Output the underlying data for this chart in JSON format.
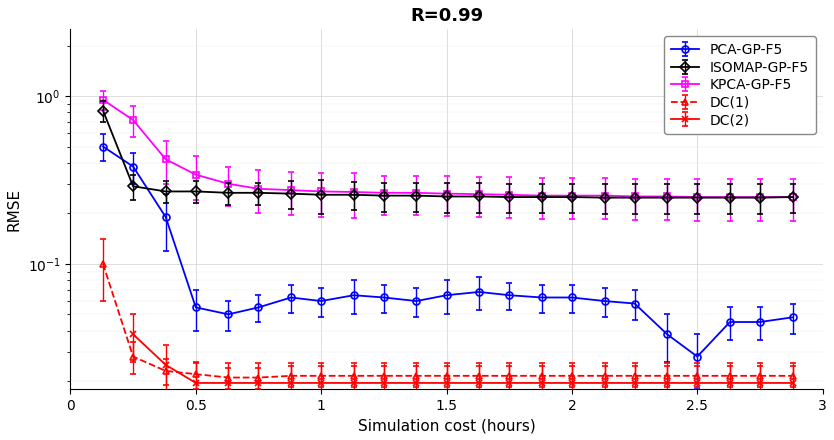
{
  "title": "R=0.99",
  "xlabel": "Simulation cost (hours)",
  "ylabel": "RMSE",
  "xlim": [
    0,
    3.0
  ],
  "ylim_log": [
    0.018,
    2.5
  ],
  "PCA_x": [
    0.13,
    0.25,
    0.38,
    0.5,
    0.63,
    0.75,
    0.88,
    1.0,
    1.13,
    1.25,
    1.38,
    1.5,
    1.63,
    1.75,
    1.88,
    2.0,
    2.13,
    2.25,
    2.38,
    2.5,
    2.63,
    2.75,
    2.88
  ],
  "PCA_y": [
    0.5,
    0.38,
    0.19,
    0.055,
    0.05,
    0.055,
    0.063,
    0.06,
    0.065,
    0.063,
    0.06,
    0.065,
    0.068,
    0.065,
    0.063,
    0.063,
    0.06,
    0.058,
    0.038,
    0.028,
    0.045,
    0.045,
    0.048
  ],
  "PCA_yerr_lo": [
    0.09,
    0.08,
    0.07,
    0.015,
    0.01,
    0.01,
    0.012,
    0.012,
    0.015,
    0.012,
    0.012,
    0.015,
    0.015,
    0.012,
    0.012,
    0.012,
    0.012,
    0.012,
    0.012,
    0.01,
    0.01,
    0.01,
    0.01
  ],
  "PCA_yerr_hi": [
    0.09,
    0.08,
    0.07,
    0.015,
    0.01,
    0.01,
    0.012,
    0.012,
    0.015,
    0.012,
    0.012,
    0.015,
    0.015,
    0.012,
    0.012,
    0.012,
    0.012,
    0.012,
    0.012,
    0.01,
    0.01,
    0.01,
    0.01
  ],
  "ISOMAP_x": [
    0.13,
    0.25,
    0.38,
    0.5,
    0.63,
    0.75,
    0.88,
    1.0,
    1.13,
    1.25,
    1.38,
    1.5,
    1.63,
    1.75,
    1.88,
    2.0,
    2.13,
    2.25,
    2.38,
    2.5,
    2.63,
    2.75,
    2.88
  ],
  "ISOMAP_y": [
    0.82,
    0.29,
    0.27,
    0.27,
    0.265,
    0.265,
    0.262,
    0.258,
    0.258,
    0.255,
    0.255,
    0.252,
    0.252,
    0.25,
    0.25,
    0.25,
    0.248,
    0.248,
    0.248,
    0.248,
    0.248,
    0.248,
    0.25
  ],
  "ISOMAP_yerr": [
    0.12,
    0.05,
    0.04,
    0.04,
    0.04,
    0.04,
    0.05,
    0.06,
    0.05,
    0.05,
    0.05,
    0.05,
    0.05,
    0.05,
    0.05,
    0.05,
    0.05,
    0.05,
    0.05,
    0.05,
    0.05,
    0.05,
    0.05
  ],
  "KPCA_x": [
    0.13,
    0.25,
    0.38,
    0.5,
    0.63,
    0.75,
    0.88,
    1.0,
    1.13,
    1.25,
    1.38,
    1.5,
    1.63,
    1.75,
    1.88,
    2.0,
    2.13,
    2.25,
    2.38,
    2.5,
    2.63,
    2.75,
    2.88
  ],
  "KPCA_y": [
    0.95,
    0.72,
    0.42,
    0.34,
    0.3,
    0.28,
    0.275,
    0.27,
    0.268,
    0.265,
    0.265,
    0.262,
    0.26,
    0.258,
    0.255,
    0.255,
    0.255,
    0.252,
    0.252,
    0.25,
    0.25,
    0.25,
    0.25
  ],
  "KPCA_yerr": [
    0.12,
    0.15,
    0.12,
    0.1,
    0.08,
    0.08,
    0.08,
    0.08,
    0.08,
    0.07,
    0.07,
    0.07,
    0.07,
    0.07,
    0.07,
    0.07,
    0.07,
    0.07,
    0.07,
    0.07,
    0.07,
    0.07,
    0.07
  ],
  "DC1_x": [
    0.13,
    0.25,
    0.38,
    0.5,
    0.63,
    0.75,
    0.88,
    1.0,
    1.13,
    1.25,
    1.38,
    1.5,
    1.63,
    1.75,
    1.88,
    2.0,
    2.13,
    2.25,
    2.38,
    2.5,
    2.63,
    2.75,
    2.88
  ],
  "DC1_y": [
    0.1,
    0.028,
    0.023,
    0.022,
    0.021,
    0.021,
    0.0215,
    0.0215,
    0.0215,
    0.0215,
    0.0215,
    0.0215,
    0.0215,
    0.0215,
    0.0215,
    0.0215,
    0.0215,
    0.0215,
    0.0215,
    0.0215,
    0.0215,
    0.0215,
    0.0215
  ],
  "DC1_yerr_lo": [
    0.04,
    0.006,
    0.004,
    0.004,
    0.003,
    0.003,
    0.003,
    0.003,
    0.003,
    0.003,
    0.003,
    0.003,
    0.003,
    0.003,
    0.003,
    0.003,
    0.003,
    0.003,
    0.003,
    0.003,
    0.003,
    0.003,
    0.003
  ],
  "DC1_yerr_hi": [
    0.04,
    0.006,
    0.004,
    0.004,
    0.003,
    0.003,
    0.003,
    0.003,
    0.003,
    0.003,
    0.003,
    0.003,
    0.003,
    0.003,
    0.003,
    0.003,
    0.003,
    0.003,
    0.003,
    0.003,
    0.003,
    0.003,
    0.003
  ],
  "DC2_x": [
    0.25,
    0.38,
    0.5,
    0.63,
    0.75,
    0.88,
    1.0,
    1.13,
    1.25,
    1.38,
    1.5,
    1.63,
    1.75,
    1.88,
    2.0,
    2.13,
    2.25,
    2.38,
    2.5,
    2.63,
    2.75,
    2.88
  ],
  "DC2_y": [
    0.038,
    0.025,
    0.0195,
    0.0195,
    0.0195,
    0.0195,
    0.0195,
    0.0195,
    0.0195,
    0.0195,
    0.0195,
    0.0195,
    0.0195,
    0.0195,
    0.0195,
    0.0195,
    0.0195,
    0.0195,
    0.0195,
    0.0195,
    0.0195,
    0.0195
  ],
  "DC2_yerr_lo": [
    0.012,
    0.008,
    0.006,
    0.006,
    0.006,
    0.006,
    0.006,
    0.006,
    0.006,
    0.006,
    0.006,
    0.006,
    0.006,
    0.006,
    0.006,
    0.006,
    0.006,
    0.006,
    0.006,
    0.006,
    0.006,
    0.006
  ],
  "DC2_yerr_hi": [
    0.012,
    0.008,
    0.006,
    0.006,
    0.006,
    0.006,
    0.006,
    0.006,
    0.006,
    0.006,
    0.006,
    0.006,
    0.006,
    0.006,
    0.006,
    0.006,
    0.006,
    0.006,
    0.006,
    0.006,
    0.006,
    0.006
  ],
  "color_PCA": "#0000FF",
  "color_ISOMAP": "#000000",
  "color_KPCA": "#FF00FF",
  "color_DC1": "#FF0000",
  "color_DC2": "#FF0000",
  "title_fontsize": 13,
  "label_fontsize": 11,
  "tick_fontsize": 10,
  "legend_fontsize": 10
}
